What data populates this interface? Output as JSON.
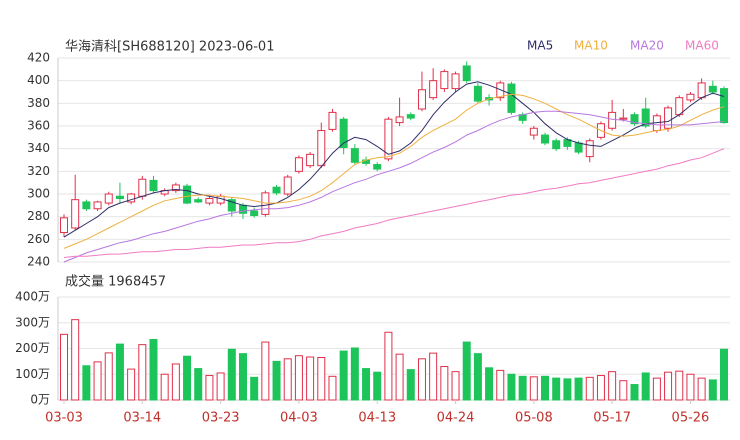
{
  "chart_data": [
    {
      "type": "candlestick",
      "title": "华海清科[SH688120] 2023-06-01",
      "up_color": "#e0304a",
      "down_color": "#1cc45a",
      "open": [
        266,
        270,
        293,
        287,
        292,
        298,
        293,
        298,
        312,
        300,
        303,
        307,
        295,
        292,
        292,
        295,
        290,
        285,
        282,
        306,
        300,
        320,
        325,
        325,
        357,
        366,
        340,
        330,
        326,
        331,
        363,
        370,
        375,
        385,
        393,
        393,
        413,
        395,
        385,
        385,
        397,
        370,
        352,
        352,
        347,
        348,
        345,
        333,
        350,
        358,
        366,
        370,
        375,
        356,
        358,
        370,
        383,
        385,
        395,
        393
      ],
      "high": [
        282,
        317,
        295,
        294,
        302,
        310,
        301,
        316,
        316,
        305,
        310,
        309,
        297,
        298,
        300,
        297,
        292,
        288,
        303,
        308,
        317,
        334,
        337,
        363,
        375,
        368,
        344,
        333,
        328,
        368,
        385,
        372,
        408,
        411,
        410,
        408,
        417,
        398,
        388,
        400,
        399,
        372,
        360,
        354,
        349,
        350,
        347,
        349,
        364,
        383,
        375,
        372,
        385,
        371,
        378,
        387,
        390,
        402,
        400,
        395
      ],
      "low": [
        262,
        268,
        285,
        285,
        290,
        292,
        291,
        295,
        301,
        298,
        301,
        291,
        292,
        290,
        290,
        280,
        278,
        279,
        280,
        299,
        298,
        318,
        323,
        323,
        355,
        335,
        326,
        325,
        320,
        329,
        360,
        365,
        373,
        383,
        390,
        390,
        398,
        380,
        378,
        382,
        370,
        362,
        348,
        343,
        338,
        339,
        335,
        328,
        348,
        356,
        364,
        360,
        358,
        354,
        355,
        368,
        381,
        383,
        388,
        362
      ],
      "close": [
        279,
        295,
        287,
        293,
        300,
        296,
        300,
        313,
        303,
        303,
        308,
        292,
        293,
        296,
        298,
        285,
        283,
        281,
        301,
        301,
        315,
        332,
        335,
        356,
        372,
        341,
        328,
        327,
        322,
        366,
        368,
        367,
        392,
        400,
        408,
        406,
        400,
        382,
        383,
        398,
        372,
        365,
        358,
        345,
        340,
        342,
        337,
        347,
        362,
        372,
        367,
        362,
        360,
        369,
        376,
        385,
        388,
        398,
        390,
        363
      ],
      "ylim": [
        240,
        420
      ],
      "yticks": [
        240,
        260,
        280,
        300,
        320,
        340,
        360,
        380,
        400,
        420
      ],
      "grid": true,
      "series": [
        {
          "name": "MA5",
          "color": "#2e2e6a",
          "values": [
            262,
            268,
            274,
            280,
            288,
            292,
            295,
            298,
            301,
            303,
            304,
            303,
            300,
            298,
            296,
            293,
            290,
            289,
            290,
            292,
            297,
            304,
            313,
            324,
            336,
            345,
            350,
            348,
            342,
            335,
            338,
            345,
            356,
            370,
            381,
            390,
            397,
            399,
            396,
            392,
            388,
            380,
            372,
            362,
            354,
            348,
            345,
            343,
            342,
            347,
            352,
            358,
            362,
            363,
            364,
            370,
            378,
            385,
            389,
            386
          ]
        },
        {
          "name": "MA10",
          "color": "#f0b040",
          "values": [
            252,
            256,
            260,
            265,
            270,
            275,
            280,
            285,
            290,
            294,
            296,
            298,
            299,
            299,
            298,
            297,
            296,
            294,
            292,
            292,
            293,
            295,
            298,
            303,
            310,
            318,
            326,
            330,
            332,
            333,
            336,
            342,
            350,
            356,
            361,
            366,
            374,
            380,
            384,
            386,
            388,
            387,
            384,
            380,
            375,
            370,
            366,
            361,
            356,
            352,
            351,
            352,
            354,
            356,
            357,
            360,
            365,
            370,
            374,
            377
          ]
        },
        {
          "name": "MA20",
          "color": "#b878e0",
          "values": [
            240,
            244,
            248,
            251,
            254,
            257,
            259,
            262,
            265,
            267,
            270,
            273,
            276,
            278,
            281,
            283,
            285,
            286,
            287,
            287,
            288,
            290,
            293,
            297,
            302,
            306,
            310,
            313,
            317,
            320,
            323,
            327,
            332,
            337,
            341,
            346,
            352,
            356,
            361,
            365,
            368,
            370,
            372,
            373,
            373,
            372,
            371,
            370,
            368,
            366,
            365,
            363,
            362,
            361,
            361,
            361,
            361,
            362,
            363,
            364
          ]
        },
        {
          "name": "MA60",
          "color": "#f07cc4",
          "values": [
            244,
            245,
            245,
            246,
            247,
            247,
            248,
            249,
            249,
            250,
            251,
            251,
            252,
            253,
            253,
            254,
            255,
            255,
            256,
            257,
            257,
            258,
            260,
            263,
            265,
            267,
            270,
            272,
            274,
            277,
            279,
            281,
            283,
            285,
            287,
            289,
            291,
            293,
            295,
            297,
            299,
            300,
            302,
            304,
            305,
            307,
            309,
            310,
            312,
            314,
            316,
            318,
            320,
            322,
            325,
            327,
            330,
            332,
            336,
            340
          ]
        }
      ]
    },
    {
      "type": "bar",
      "title": "成交量 1968457",
      "categories": [
        "03-03",
        null,
        null,
        null,
        null,
        null,
        null,
        "03-14",
        null,
        null,
        null,
        null,
        null,
        null,
        "03-23",
        null,
        null,
        null,
        null,
        null,
        null,
        "04-03",
        null,
        null,
        null,
        null,
        null,
        null,
        "04-13",
        null,
        null,
        null,
        null,
        null,
        null,
        "04-24",
        null,
        null,
        null,
        null,
        null,
        null,
        "05-08",
        null,
        null,
        null,
        null,
        null,
        null,
        "05-17",
        null,
        null,
        null,
        null,
        null,
        null,
        "05-26",
        null,
        null,
        null
      ],
      "values": [
        255,
        312,
        133,
        148,
        183,
        217,
        120,
        215,
        235,
        100,
        140,
        170,
        122,
        95,
        105,
        197,
        180,
        88,
        225,
        150,
        160,
        172,
        167,
        165,
        92,
        190,
        202,
        122,
        108,
        263,
        178,
        118,
        160,
        182,
        130,
        110,
        225,
        180,
        125,
        115,
        100,
        92,
        90,
        92,
        85,
        82,
        85,
        88,
        95,
        110,
        75,
        60,
        105,
        85,
        108,
        112,
        100,
        85,
        78,
        197
      ],
      "ylim": [
        0,
        400
      ],
      "yticks": [
        {
          "value": 0,
          "label": "0万"
        },
        {
          "value": 100,
          "label": "100万"
        },
        {
          "value": 200,
          "label": "200万"
        },
        {
          "value": 300,
          "label": "300万"
        },
        {
          "value": 400,
          "label": "400万"
        }
      ]
    }
  ]
}
